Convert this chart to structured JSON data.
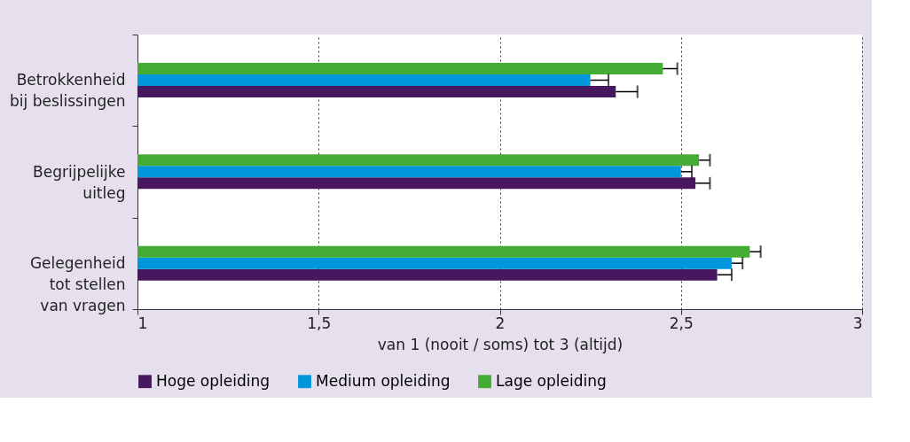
{
  "chart_data": {
    "type": "bar",
    "orientation": "horizontal",
    "categories": [
      "Betrokkenheid\nbij beslissingen",
      "Begrijpelijke\nuitleg",
      "Gelegenheid\ntot stellen\nvan vragen"
    ],
    "series": [
      {
        "name": "Hoge opleiding",
        "color": "#47175f",
        "values": [
          2.32,
          2.54,
          2.6
        ],
        "errors": [
          0.06,
          0.04,
          0.04
        ]
      },
      {
        "name": "Medium opleiding",
        "color": "#0096dc",
        "values": [
          2.25,
          2.5,
          2.64
        ],
        "errors": [
          0.05,
          0.03,
          0.03
        ]
      },
      {
        "name": "Lage opleiding",
        "color": "#44ab35",
        "values": [
          2.45,
          2.55,
          2.69
        ],
        "errors": [
          0.04,
          0.03,
          0.03
        ]
      }
    ],
    "xlabel": "van 1 (nooit / soms) tot 3 (altijd)",
    "xlim": [
      1,
      3
    ],
    "xticks": [
      1,
      {
        "value": 1.5,
        "label": "1,5"
      },
      2,
      {
        "value": 2.5,
        "label": "2,5"
      },
      3
    ],
    "grid": "x",
    "legend": "bottom"
  }
}
